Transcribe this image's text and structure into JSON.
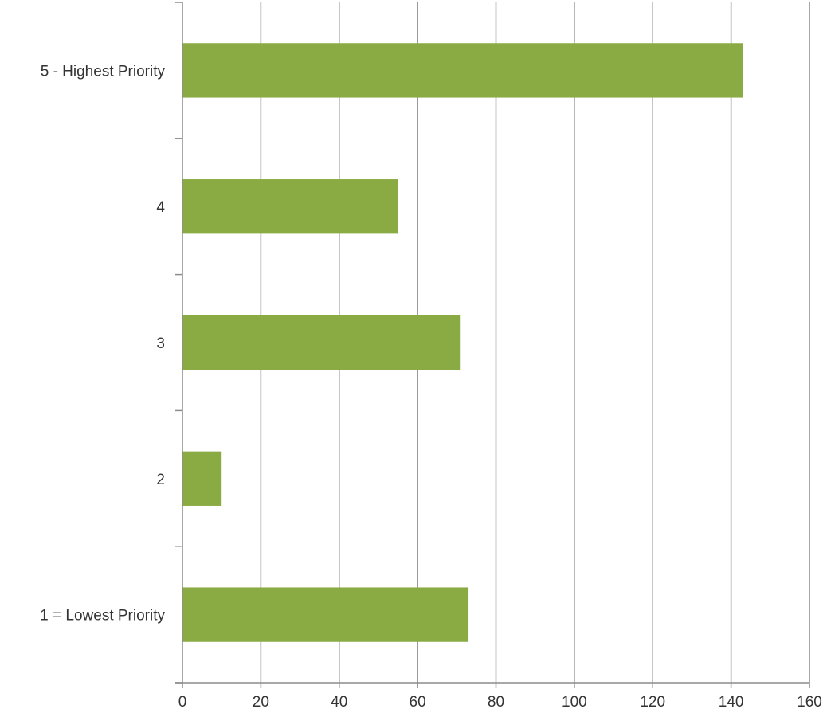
{
  "chart_data": {
    "type": "bar",
    "orientation": "horizontal",
    "categories": [
      "5 - Highest Priority",
      "4",
      "3",
      "2",
      "1 = Lowest Priority"
    ],
    "values": [
      143,
      55,
      71,
      10,
      73
    ],
    "title": "",
    "xlabel": "",
    "ylabel": "",
    "xlim": [
      0,
      160
    ],
    "x_ticks": [
      "0",
      "20",
      "40",
      "60",
      "80",
      "100",
      "120",
      "140",
      "160"
    ],
    "grid": "vertical",
    "legend": "none",
    "colors": {
      "bar": "#8aab43",
      "grid": "#8c8c8c",
      "text": "#333333"
    }
  }
}
